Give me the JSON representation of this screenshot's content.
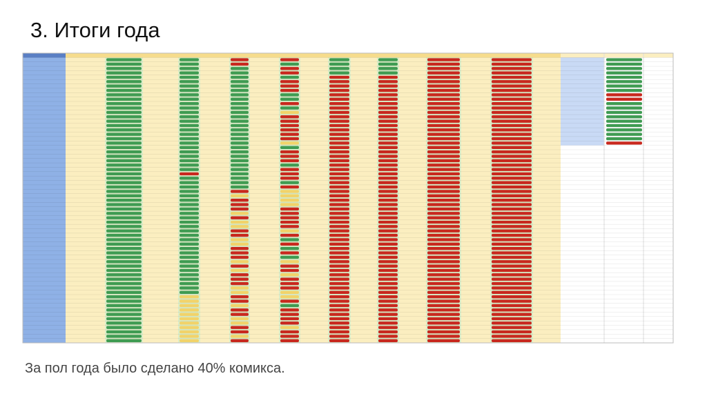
{
  "slide": {
    "title": "3. Итоги года",
    "caption": "За пол года было сделано 40% комикса."
  }
}
